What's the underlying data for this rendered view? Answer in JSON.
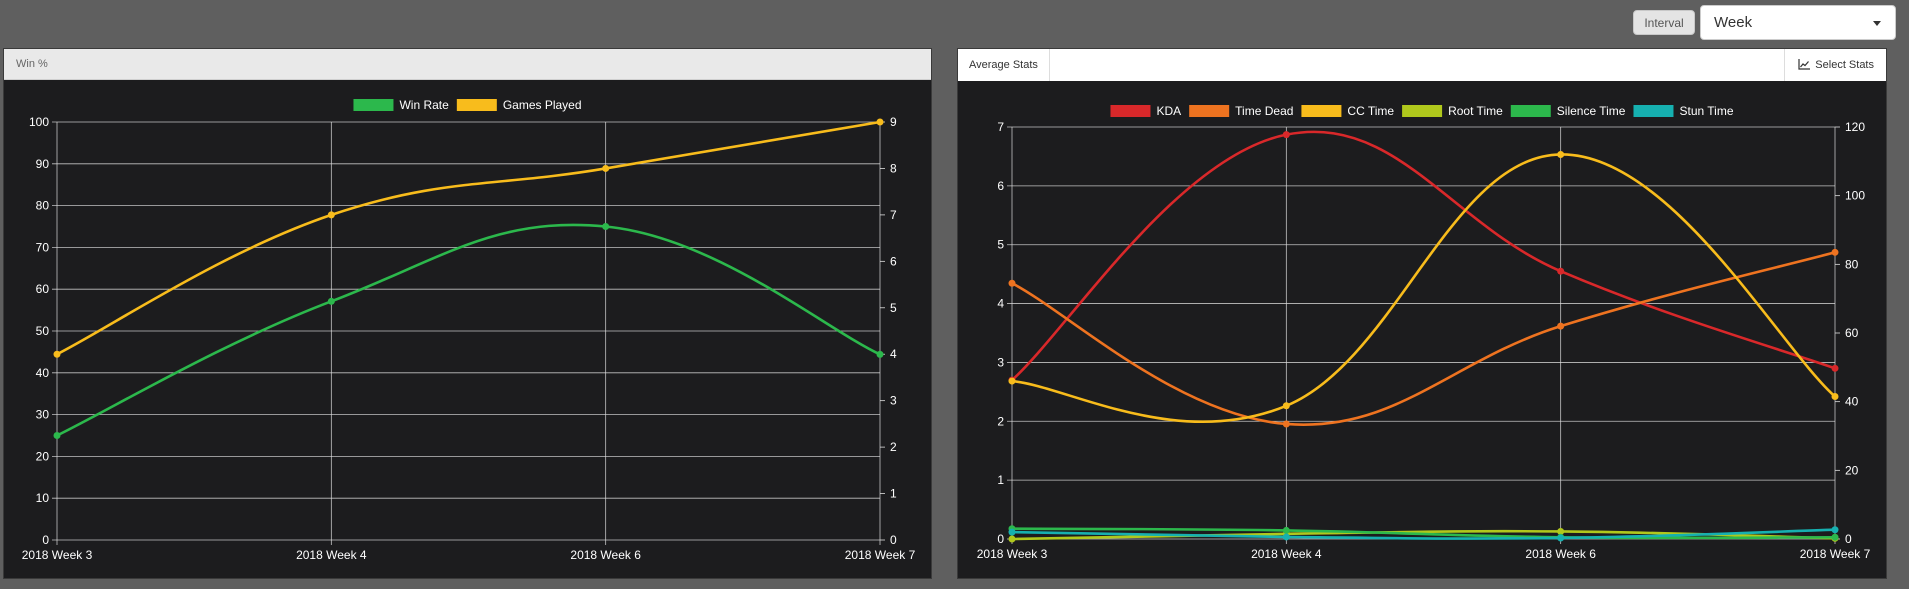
{
  "controls": {
    "interval_label": "Interval",
    "interval_value": "Week"
  },
  "left_panel": {
    "title": "Win %"
  },
  "right_panel": {
    "tab_label": "Average Stats",
    "select_label": "Select Stats"
  },
  "colors": {
    "background": "#1c1c1e",
    "grid": "#e0e0e0",
    "win_rate": "#2cb84c",
    "games_played": "#f8bc1c",
    "kda": "#d9282a",
    "time_dead": "#ee7320",
    "cc_time": "#f8bc1c",
    "root_time": "#b0c81c",
    "silence_time": "#2cb84c",
    "stun_time": "#16b0b0"
  },
  "chart_data": [
    {
      "type": "line",
      "categories": [
        "2018 Week 3",
        "2018 Week 4",
        "2018 Week 6",
        "2018 Week 7"
      ],
      "series": [
        {
          "name": "Win Rate",
          "axis": "left",
          "values": [
            25,
            57.1,
            75,
            44.4
          ]
        },
        {
          "name": "Games Played",
          "axis": "right",
          "values": [
            4,
            7,
            8,
            9
          ]
        }
      ],
      "y_left": {
        "min": 0,
        "max": 100,
        "ticks": [
          0,
          10,
          20,
          30,
          40,
          50,
          60,
          70,
          80,
          90,
          100
        ]
      },
      "y_right": {
        "min": 0,
        "max": 9,
        "ticks": [
          0,
          1,
          2,
          3,
          4,
          5,
          6,
          7,
          8,
          9
        ]
      },
      "grid": true,
      "legend": "top"
    },
    {
      "type": "line",
      "categories": [
        "2018 Week 3",
        "2018 Week 4",
        "2018 Week 6",
        "2018 Week 7"
      ],
      "series": [
        {
          "name": "KDA",
          "axis": "left",
          "values": [
            2.7,
            6.87,
            4.55,
            2.9
          ]
        },
        {
          "name": "Time Dead",
          "axis": "right",
          "values": [
            74.5,
            33.5,
            62,
            83.5
          ]
        },
        {
          "name": "CC Time",
          "axis": "right",
          "values": [
            46,
            38.8,
            112,
            41.5
          ]
        },
        {
          "name": "Root Time",
          "axis": "right",
          "values": [
            0,
            1.5,
            2.2,
            0.2
          ]
        },
        {
          "name": "Silence Time",
          "axis": "right",
          "values": [
            3,
            2.5,
            0.5,
            0.5
          ]
        },
        {
          "name": "Stun Time",
          "axis": "right",
          "values": [
            2,
            0.6,
            0.3,
            2.7
          ]
        }
      ],
      "y_left": {
        "min": 0,
        "max": 7,
        "ticks": [
          0,
          1,
          2,
          3,
          4,
          5,
          6,
          7
        ]
      },
      "y_right": {
        "min": 0,
        "max": 120,
        "ticks": [
          0,
          20,
          40,
          60,
          80,
          100,
          120
        ]
      },
      "grid": true,
      "legend": "top"
    }
  ]
}
